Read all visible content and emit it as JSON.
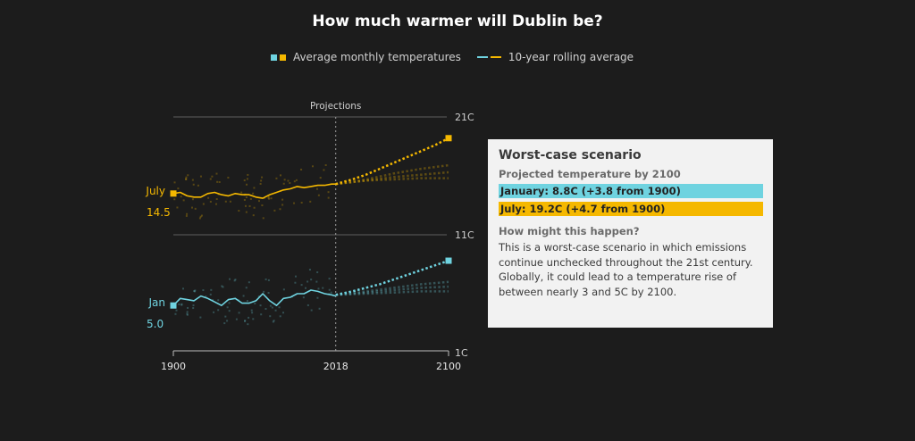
{
  "title": "How much warmer will Dublin be?",
  "legend": {
    "items": [
      {
        "label": "Average monthly temperatures",
        "kind": "squares",
        "colors": [
          "#6fd3e0",
          "#f5b800"
        ]
      },
      {
        "label": "10-year rolling average",
        "kind": "lines",
        "colors": [
          "#6fd3e0",
          "#f5b800"
        ]
      }
    ]
  },
  "panel": {
    "title": "Worst-case scenario",
    "subtitle": "Projected temperature by 2100",
    "january_bar": "January: 8.8C (+3.8 from 1900)",
    "july_bar": "July: 19.2C (+4.7 from 1900)",
    "question": "How might this happen?",
    "body": "This is a worst-case scenario in which emissions continue unchecked throughout the 21st century. Globally, it could lead to a temperature rise of between nearly 3 and 5C by 2100."
  },
  "colors": {
    "background": "#1c1c1c",
    "january": "#6fd3e0",
    "july": "#f5b800",
    "grid": "#6a6a6a",
    "panel_bg": "#f2f2f2"
  },
  "chart_data": {
    "type": "line",
    "title": "How much warmer will Dublin be?",
    "xlabel": "",
    "ylabel": "",
    "xlim": [
      1900,
      2100
    ],
    "ylim": [
      1,
      21
    ],
    "x_ticks": [
      "1900",
      "2018",
      "2100"
    ],
    "y_ticks": [
      "21C",
      "11C",
      "1C"
    ],
    "y_tick_values": [
      21,
      11,
      1
    ],
    "annotation": {
      "x": 2018,
      "label": "Projections"
    },
    "series_labels": {
      "july": {
        "name": "July",
        "start": "14.5"
      },
      "january": {
        "name": "Jan",
        "start": "5.0"
      }
    },
    "series": [
      {
        "name": "July 10-year rolling average",
        "month": "july",
        "x": [
          1900,
          1905,
          1910,
          1915,
          1920,
          1925,
          1930,
          1935,
          1940,
          1945,
          1950,
          1955,
          1960,
          1965,
          1970,
          1975,
          1980,
          1985,
          1990,
          1995,
          2000,
          2005,
          2010,
          2015,
          2018
        ],
        "values": [
          14.5,
          14.6,
          14.3,
          14.2,
          14.2,
          14.5,
          14.6,
          14.4,
          14.3,
          14.5,
          14.4,
          14.4,
          14.2,
          14.1,
          14.4,
          14.6,
          14.8,
          14.9,
          15.1,
          15.0,
          15.1,
          15.2,
          15.2,
          15.3,
          15.3
        ]
      },
      {
        "name": "July worst-case projection",
        "month": "july",
        "projection": true,
        "x": [
          2018,
          2030,
          2040,
          2050,
          2060,
          2070,
          2080,
          2090,
          2100
        ],
        "values": [
          15.3,
          15.7,
          16.1,
          16.6,
          17.1,
          17.6,
          18.1,
          18.6,
          19.2
        ]
      },
      {
        "name": "July moderate projection",
        "month": "july",
        "projection": true,
        "faint": true,
        "x": [
          2018,
          2040,
          2060,
          2080,
          2100
        ],
        "values": [
          15.3,
          15.7,
          16.2,
          16.6,
          16.9
        ]
      },
      {
        "name": "July low projection",
        "month": "july",
        "projection": true,
        "faint": true,
        "x": [
          2018,
          2040,
          2060,
          2080,
          2100
        ],
        "values": [
          15.3,
          15.6,
          15.9,
          16.1,
          16.3
        ]
      },
      {
        "name": "July lowest projection",
        "month": "july",
        "projection": true,
        "faint": true,
        "x": [
          2018,
          2040,
          2060,
          2080,
          2100
        ],
        "values": [
          15.3,
          15.6,
          15.7,
          15.8,
          15.8
        ]
      },
      {
        "name": "January 10-year rolling average",
        "month": "january",
        "x": [
          1900,
          1905,
          1910,
          1915,
          1920,
          1925,
          1930,
          1935,
          1940,
          1945,
          1950,
          1955,
          1960,
          1965,
          1970,
          1975,
          1980,
          1985,
          1990,
          1995,
          2000,
          2005,
          2010,
          2015,
          2018
        ],
        "values": [
          5.0,
          5.6,
          5.5,
          5.4,
          5.8,
          5.6,
          5.3,
          5.0,
          5.5,
          5.6,
          5.2,
          5.2,
          5.4,
          6.0,
          5.4,
          5.0,
          5.6,
          5.7,
          6.0,
          6.0,
          6.3,
          6.2,
          6.0,
          5.9,
          5.8
        ],
        "note": "approximate trace"
      },
      {
        "name": "January worst-case projection",
        "month": "january",
        "projection": true,
        "x": [
          2018,
          2030,
          2040,
          2050,
          2060,
          2070,
          2080,
          2090,
          2100
        ],
        "values": [
          5.9,
          6.2,
          6.5,
          6.8,
          7.2,
          7.6,
          8.0,
          8.4,
          8.8
        ]
      },
      {
        "name": "January moderate projection",
        "month": "january",
        "projection": true,
        "faint": true,
        "x": [
          2018,
          2040,
          2060,
          2080,
          2100
        ],
        "values": [
          5.9,
          6.2,
          6.5,
          6.8,
          7.0
        ]
      },
      {
        "name": "January low projection",
        "month": "january",
        "projection": true,
        "faint": true,
        "x": [
          2018,
          2040,
          2060,
          2080,
          2100
        ],
        "values": [
          5.9,
          6.1,
          6.3,
          6.5,
          6.6
        ]
      },
      {
        "name": "January lowest projection",
        "month": "january",
        "projection": true,
        "faint": true,
        "x": [
          2018,
          2040,
          2060,
          2080,
          2100
        ],
        "values": [
          5.9,
          6.0,
          6.1,
          6.2,
          6.2
        ]
      }
    ],
    "endpoints": [
      {
        "month": "july",
        "x": 1900,
        "value": 14.5
      },
      {
        "month": "july",
        "x": 2100,
        "value": 19.2
      },
      {
        "month": "january",
        "x": 1900,
        "value": 5.0
      },
      {
        "month": "january",
        "x": 2100,
        "value": 8.8
      }
    ],
    "grid": true,
    "legend_position": "top-center"
  }
}
